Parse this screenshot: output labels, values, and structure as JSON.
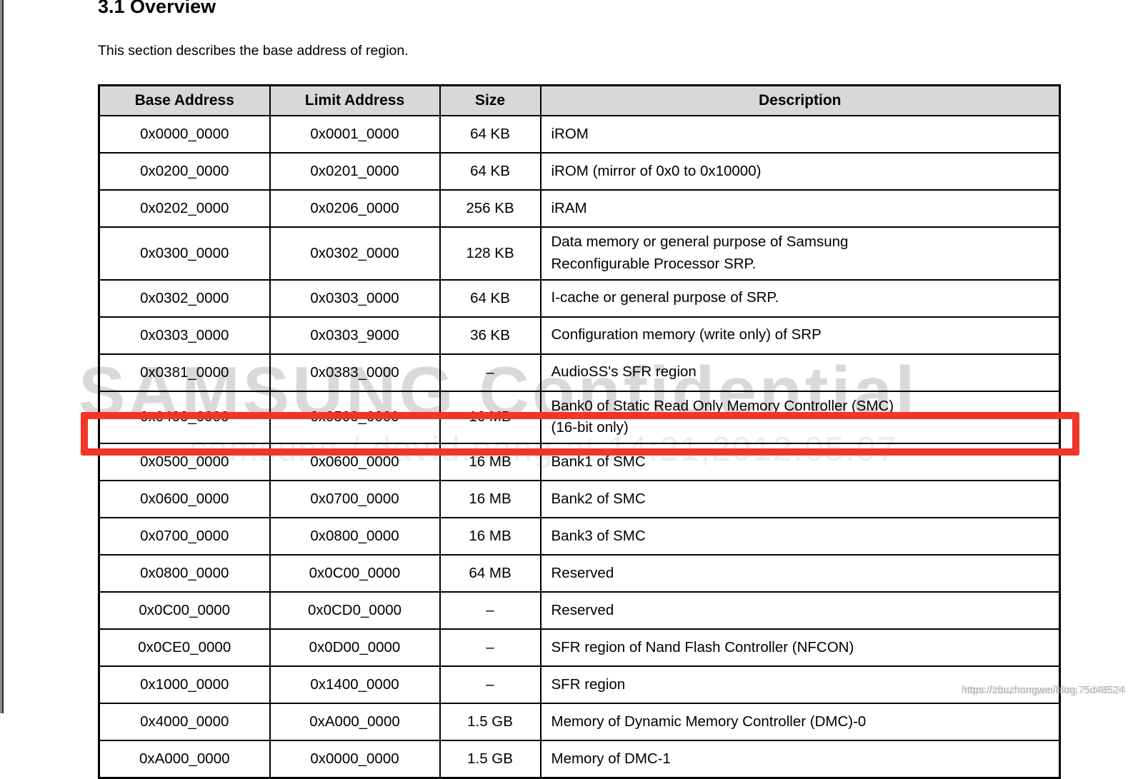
{
  "page": {
    "title": "3.1 Overview",
    "intro": "This section describes the base address of region."
  },
  "table": {
    "columns": [
      "Base Address",
      "Limit Address",
      "Size",
      "Description"
    ],
    "rows": [
      {
        "base": "0x0000_0000",
        "limit": "0x0001_0000",
        "size": "64 KB",
        "description": "iROM"
      },
      {
        "base": "0x0200_0000",
        "limit": "0x0201_0000",
        "size": "64 KB",
        "description": "iROM (mirror of 0x0 to 0x10000)"
      },
      {
        "base": "0x0202_0000",
        "limit": "0x0206_0000",
        "size": "256 KB",
        "description": "iRAM"
      },
      {
        "base": "0x0300_0000",
        "limit": "0x0302_0000",
        "size": "128 KB",
        "description": "Data memory or general purpose of Samsung\nReconfigurable Processor SRP."
      },
      {
        "base": "0x0302_0000",
        "limit": "0x0303_0000",
        "size": "64 KB",
        "description": "I-cache or general purpose of SRP."
      },
      {
        "base": "0x0303_0000",
        "limit": "0x0303_9000",
        "size": "36 KB",
        "description": "Configuration memory (write only) of SRP"
      },
      {
        "base": "0x0381_0000",
        "limit": "0x0383_0000",
        "size": "–",
        "description": "AudioSS's SFR region"
      },
      {
        "base": "0x0400_0000",
        "limit": "0x0500_0000",
        "size": "16 MB",
        "description": "Bank0 of Static Read Only Memory Controller (SMC)\n(16-bit only)"
      },
      {
        "base": "0x0500_0000",
        "limit": "0x0600_0000",
        "size": "16 MB",
        "description": "Bank1 of SMC",
        "highlighted": true
      },
      {
        "base": "0x0600_0000",
        "limit": "0x0700_0000",
        "size": "16 MB",
        "description": "Bank2 of SMC"
      },
      {
        "base": "0x0700_0000",
        "limit": "0x0800_0000",
        "size": "16 MB",
        "description": "Bank3 of SMC"
      },
      {
        "base": "0x0800_0000",
        "limit": "0x0C00_0000",
        "size": "64 MB",
        "description": "Reserved"
      },
      {
        "base": "0x0C00_0000",
        "limit": "0x0CD0_0000",
        "size": "–",
        "description": "Reserved"
      },
      {
        "base": "0x0CE0_0000",
        "limit": "0x0D00_0000",
        "size": "–",
        "description": "SFR region of Nand Flash Controller (NFCON)"
      },
      {
        "base": "0x1000_0000",
        "limit": "0x1400_0000",
        "size": "–",
        "description": "SFR region"
      },
      {
        "base": "0x4000_0000",
        "limit": "0xA000_0000",
        "size": "1.5 GB",
        "description": "Memory of Dynamic Memory Controller (DMC)-0"
      },
      {
        "base": "0xA000_0000",
        "limit": "0x0000_0000",
        "size": "1.5 GB",
        "description": "Memory of DMC-1"
      }
    ]
  },
  "watermarks": {
    "primary": "SAMSUNG Confidential",
    "secondary": "samsung / david.pang at 14:21,2012.05.07",
    "corner": "https://zbuzhongwei/blog.75d48524"
  },
  "annotations": {
    "highlight_color": "#f13527"
  }
}
